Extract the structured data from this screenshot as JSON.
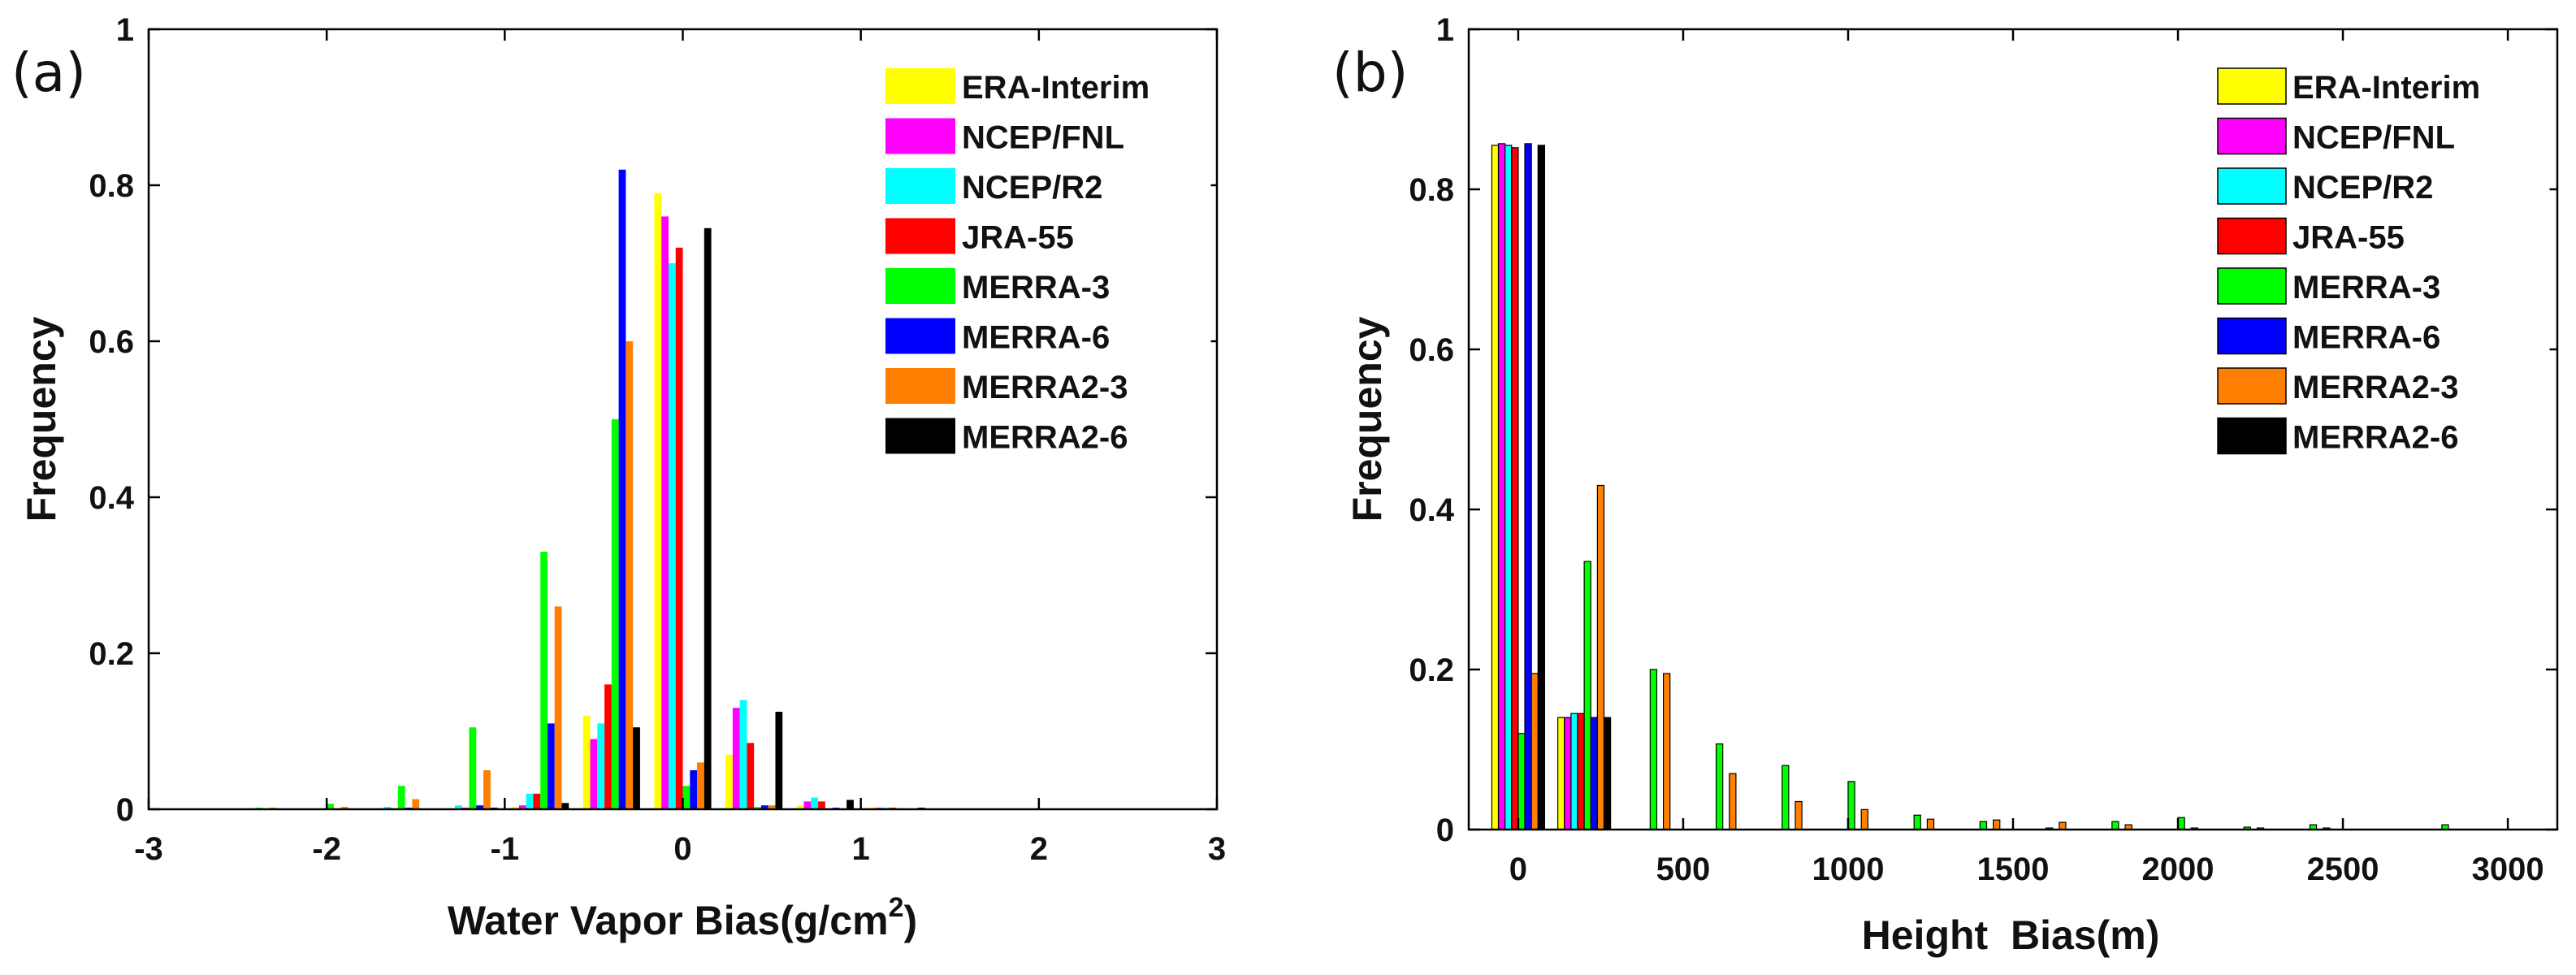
{
  "chart_data": [
    {
      "type": "bar",
      "panel_label": "(a)",
      "xlabel_main": "Water Vapor Bias(g/cm",
      "xlabel_sup": "2",
      "xlabel_end": ")",
      "ylabel": "Frequency",
      "xlim": [
        -3,
        3
      ],
      "ylim": [
        0,
        1
      ],
      "xticks": [
        -3,
        -2,
        -1,
        0,
        1,
        2,
        3
      ],
      "yticks": [
        0,
        0.2,
        0.4,
        0.6,
        0.8,
        1
      ],
      "ytick_labels": [
        "0",
        "0.2",
        "0.4",
        "0.6",
        "0.8",
        "1"
      ],
      "bin_width": 0.4,
      "categories": [
        -2.4,
        -2.0,
        -1.6,
        -1.2,
        -0.8,
        -0.4,
        0.0,
        0.4,
        0.8,
        1.2,
        1.6,
        2.0
      ],
      "series": [
        {
          "name": "ERA-Interim",
          "color": "#ffff00",
          "values": [
            0,
            0,
            0,
            0,
            0.003,
            0.12,
            0.79,
            0.07,
            0.005,
            0.002,
            0,
            0
          ]
        },
        {
          "name": "NCEP/FNL",
          "color": "#ff00ff",
          "values": [
            0,
            0,
            0,
            0,
            0.005,
            0.09,
            0.76,
            0.13,
            0.01,
            0.002,
            0,
            0
          ]
        },
        {
          "name": "NCEP/R2",
          "color": "#00ffff",
          "values": [
            0,
            0,
            0.003,
            0.005,
            0.02,
            0.11,
            0.7,
            0.14,
            0.015,
            0.002,
            0,
            0
          ]
        },
        {
          "name": "JRA-55",
          "color": "#ff0000",
          "values": [
            0,
            0,
            0,
            0.002,
            0.02,
            0.16,
            0.72,
            0.085,
            0.01,
            0.002,
            0,
            0
          ]
        },
        {
          "name": "MERRA-3",
          "color": "#00ff00",
          "values": [
            0.002,
            0.007,
            0.03,
            0.105,
            0.33,
            0.5,
            0.03,
            0.003,
            0,
            0,
            0,
            0
          ]
        },
        {
          "name": "MERRA-6",
          "color": "#0000ff",
          "values": [
            0,
            0,
            0.002,
            0.005,
            0.11,
            0.82,
            0.05,
            0.005,
            0.002,
            0,
            0,
            0
          ]
        },
        {
          "name": "MERRA2-3",
          "color": "#ff8000",
          "values": [
            0.002,
            0.003,
            0.013,
            0.05,
            0.26,
            0.6,
            0.06,
            0.005,
            0,
            0,
            0,
            0
          ]
        },
        {
          "name": "MERRA2-6",
          "color": "#000000",
          "values": [
            0,
            0,
            0,
            0.002,
            0.008,
            0.105,
            0.745,
            0.125,
            0.012,
            0.002,
            0,
            0
          ]
        }
      ]
    },
    {
      "type": "bar",
      "panel_label": "(b)",
      "xlabel": "Height  Bias(m)",
      "ylabel": "Frequency",
      "xlim": [
        -150,
        3150
      ],
      "ylim": [
        0,
        1
      ],
      "xticks": [
        0,
        500,
        1000,
        1500,
        2000,
        2500,
        3000
      ],
      "yticks": [
        0,
        0.2,
        0.4,
        0.6,
        0.8,
        1
      ],
      "ytick_labels": [
        "0",
        "0.2",
        "0.4",
        "0.6",
        "0.8",
        "1"
      ],
      "bin_width": 200,
      "categories": [
        0,
        200,
        400,
        600,
        800,
        1000,
        1200,
        1400,
        1600,
        1800,
        2000,
        2200,
        2400,
        2800
      ],
      "series": [
        {
          "name": "ERA-Interim",
          "color": "#ffff00",
          "values": [
            0.855,
            0.14,
            0,
            0,
            0,
            0,
            0,
            0,
            0,
            0,
            0,
            0,
            0,
            0
          ]
        },
        {
          "name": "NCEP/FNL",
          "color": "#ff00ff",
          "values": [
            0.857,
            0.14,
            0,
            0,
            0,
            0,
            0,
            0,
            0,
            0,
            0,
            0,
            0,
            0
          ]
        },
        {
          "name": "NCEP/R2",
          "color": "#00ffff",
          "values": [
            0.855,
            0.145,
            0,
            0,
            0,
            0,
            0,
            0,
            0,
            0,
            0,
            0,
            0,
            0
          ]
        },
        {
          "name": "JRA-55",
          "color": "#ff0000",
          "values": [
            0.852,
            0.145,
            0,
            0,
            0,
            0,
            0,
            0,
            0,
            0,
            0,
            0,
            0,
            0
          ]
        },
        {
          "name": "MERRA-3",
          "color": "#00ff00",
          "values": [
            0.12,
            0.335,
            0.2,
            0.107,
            0.08,
            0.06,
            0.018,
            0.01,
            0.002,
            0.01,
            0.015,
            0.003,
            0.006,
            0.006
          ]
        },
        {
          "name": "MERRA-6",
          "color": "#0000ff",
          "values": [
            0.857,
            0.14,
            0,
            0,
            0,
            0,
            0,
            0,
            0,
            0,
            0,
            0,
            0,
            0
          ]
        },
        {
          "name": "MERRA2-3",
          "color": "#ff8000",
          "values": [
            0.195,
            0.43,
            0.195,
            0.07,
            0.035,
            0.025,
            0.013,
            0.012,
            0.009,
            0.006,
            0.002,
            0.002,
            0.002,
            0
          ]
        },
        {
          "name": "MERRA2-6",
          "color": "#000000",
          "values": [
            0.855,
            0.14,
            0,
            0,
            0,
            0,
            0,
            0,
            0,
            0,
            0,
            0,
            0,
            0
          ]
        }
      ]
    }
  ]
}
